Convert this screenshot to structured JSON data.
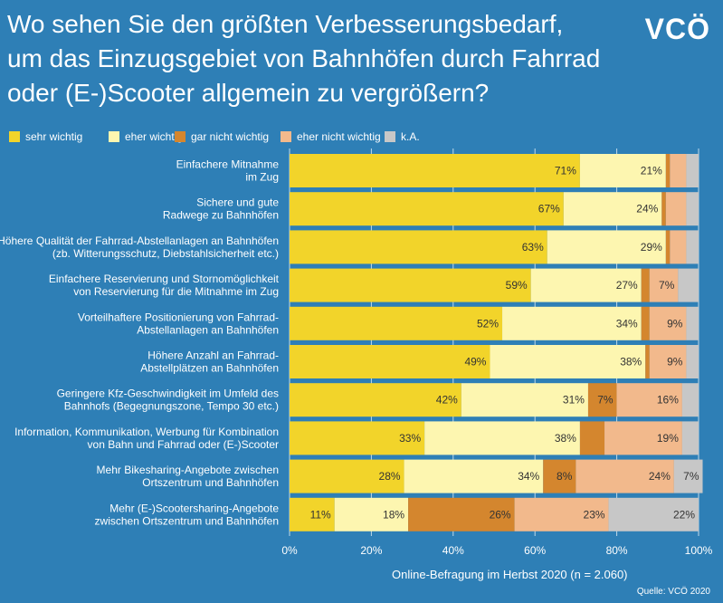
{
  "title": "Wo sehen Sie den größten Verbesserungsbedarf, um das Einzugsgebiet von Bahnhöfen durch Fahrrad oder (E-)Scooter allgemein zu vergrößern?",
  "logo": "VCÖ",
  "footer": "Online-Befragung im Herbst 2020 (n = 2.060)",
  "source": "Quelle: VCÖ 2020",
  "colors": {
    "background": "#2e7fb6",
    "sehr": "#f2d42a",
    "eher": "#fdf6b0",
    "gar": "#d4862e",
    "ehernicht": "#f2b98c",
    "ka": "#c7c7c7",
    "grid": "#ffffff"
  },
  "chart_data": {
    "type": "bar",
    "orientation": "horizontal",
    "stacked": true,
    "categories": [
      "Einfachere Mitnahme\nim Zug",
      "Sichere und gute\nRadwege zu Bahnhöfen",
      "Höhere Qualität der Fahrrad-Abstellanlagen an Bahnhöfen\n(zb. Witterungsschutz, Diebstahlsicherheit etc.)",
      "Einfachere Reservierung und Stornomöglichkeit\nvon Reservierung für die Mitnahme im Zug",
      "Vorteilhaftere Positionierung von Fahrrad-\nAbstellanlagen an Bahnhöfen",
      "Höhere Anzahl an Fahrrad-\nAbstellplätzen an Bahnhöfen",
      "Geringere Kfz-Geschwindigkeit im Umfeld des\nBahnhofs (Begegnungszone, Tempo 30 etc.)",
      "Information, Kommunikation, Werbung für Kombination\nvon Bahn und Fahrrad oder (E-)Scooter",
      "Mehr Bikesharing-Angebote zwischen\nOrtszentrum und Bahnhöfen",
      "Mehr (E-)Scootersharing-Angebote\nzwischen Ortszentrum und Bahnhöfen"
    ],
    "series": [
      {
        "name": "sehr wichtig",
        "color": "#f2d42a",
        "values": [
          71,
          67,
          63,
          59,
          52,
          49,
          42,
          33,
          28,
          11
        ],
        "labels": [
          "71%",
          "67%",
          "63%",
          "59%",
          "52%",
          "49%",
          "42%",
          "33%",
          "28%",
          "11%"
        ]
      },
      {
        "name": "eher wichtig",
        "color": "#fdf6b0",
        "values": [
          21,
          24,
          29,
          27,
          34,
          38,
          31,
          38,
          34,
          18
        ],
        "labels": [
          "21%",
          "24%",
          "29%",
          "27%",
          "34%",
          "38%",
          "31%",
          "38%",
          "34%",
          "18%"
        ]
      },
      {
        "name": "gar nicht wichtig",
        "color": "#d4862e",
        "values": [
          1,
          1,
          1,
          2,
          2,
          1,
          7,
          6,
          8,
          26
        ],
        "labels": [
          "",
          "",
          "",
          "",
          "",
          "",
          "7%",
          "",
          "8%",
          "26%"
        ]
      },
      {
        "name": "eher nicht wichtig",
        "color": "#f2b98c",
        "values": [
          4,
          5,
          4,
          7,
          9,
          9,
          16,
          19,
          24,
          23
        ],
        "labels": [
          "",
          "",
          "",
          "7%",
          "9%",
          "9%",
          "16%",
          "19%",
          "24%",
          "23%"
        ]
      },
      {
        "name": "k.A.",
        "color": "#c7c7c7",
        "values": [
          3,
          3,
          3,
          5,
          3,
          3,
          4,
          4,
          7,
          22
        ],
        "labels": [
          "",
          "",
          "",
          "",
          "",
          "",
          "",
          "",
          "7%",
          "22%"
        ]
      }
    ],
    "xlim": [
      0,
      100
    ],
    "xticks": [
      "0%",
      "20%",
      "40%",
      "60%",
      "80%",
      "100%"
    ],
    "xtick_values": [
      0,
      20,
      40,
      60,
      80,
      100
    ],
    "grid": true,
    "legend_position": "top"
  }
}
